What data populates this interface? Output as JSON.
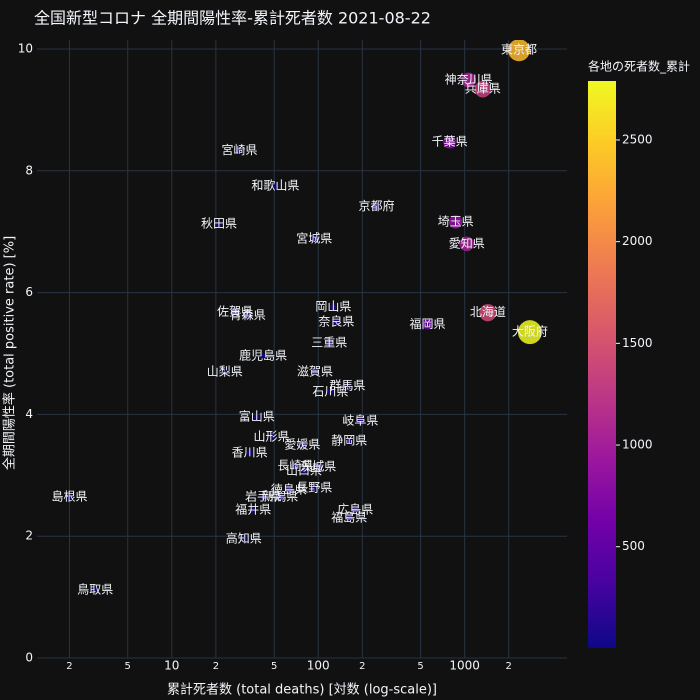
{
  "chart_data": {
    "type": "scatter",
    "title": "全国新型コロナ 全期間陽性率-累計死者数 2021-08-22",
    "x_label": "累計死者数 (total deaths) [対数 (log-scale)]",
    "y_label": "全期間陽性率 (total positive rate) [%]",
    "colorbar_title": "各地の死者数_累計",
    "labels": [
      "東京都",
      "神奈川県",
      "兵庫県",
      "千葉県",
      "京都府",
      "埼玉県",
      "愛知県",
      "宮崎県",
      "和歌山県",
      "秋田県",
      "宮城県",
      "岡山県",
      "奈良県",
      "北海道",
      "大阪府",
      "福岡県",
      "佐賀県",
      "青森県",
      "三重県",
      "鹿児島県",
      "山梨県",
      "滋賀県",
      "群馬県",
      "石川県",
      "富山県",
      "岐阜県",
      "山形県",
      "愛媛県",
      "静岡県",
      "香川県",
      "長崎県",
      "山口県",
      "茨城県",
      "徳島県",
      "長野県",
      "岩手県",
      "新潟県",
      "福井県",
      "高知県",
      "広島県",
      "福島県",
      "島根県",
      "鳥取県"
    ],
    "x": [
      2350,
      1065,
      1330,
      789,
      250,
      867,
      1033,
      29,
      51,
      21,
      94,
      127,
      133,
      1440,
      2790,
      558,
      27,
      33,
      119,
      42,
      23,
      95,
      158,
      121,
      38,
      194,
      48,
      78,
      163,
      34,
      70,
      80,
      100,
      63,
      94,
      42,
      55,
      36,
      31,
      179,
      163,
      2,
      3
    ],
    "values": [
      9.98,
      9.49,
      9.34,
      8.47,
      7.41,
      7.16,
      6.8,
      8.33,
      7.75,
      7.13,
      6.88,
      5.76,
      5.52,
      5.67,
      5.35,
      5.48,
      5.68,
      5.62,
      5.17,
      4.96,
      4.7,
      4.7,
      4.47,
      4.37,
      3.96,
      3.89,
      3.63,
      3.5,
      3.56,
      3.37,
      3.15,
      3.07,
      3.14,
      2.76,
      2.79,
      2.64,
      2.64,
      2.43,
      1.95,
      2.43,
      2.3,
      2.64,
      1.12
    ],
    "xscale": "log",
    "xlim": [
      1.2,
      5000
    ],
    "xticks": [
      2,
      5,
      10,
      {
        "value": 20,
        "label": "2"
      },
      {
        "value": 50,
        "label": "5"
      },
      100,
      {
        "value": 200,
        "label": "2"
      },
      {
        "value": 500,
        "label": "5"
      },
      1000,
      {
        "value": 2000,
        "label": "2"
      }
    ],
    "ylim": [
      0,
      10
    ],
    "yticks": [
      0,
      2,
      4,
      6,
      8,
      10
    ],
    "grid": true,
    "colorscale": [
      "#0d0887",
      "#46039f",
      "#7201a8",
      "#9c179e",
      "#bd3786",
      "#d8576b",
      "#ed7953",
      "#fb9f3a",
      "#fdca26",
      "#f0f921"
    ],
    "colorbar_ticks": [
      500,
      1000,
      1500,
      2000,
      2500
    ]
  }
}
